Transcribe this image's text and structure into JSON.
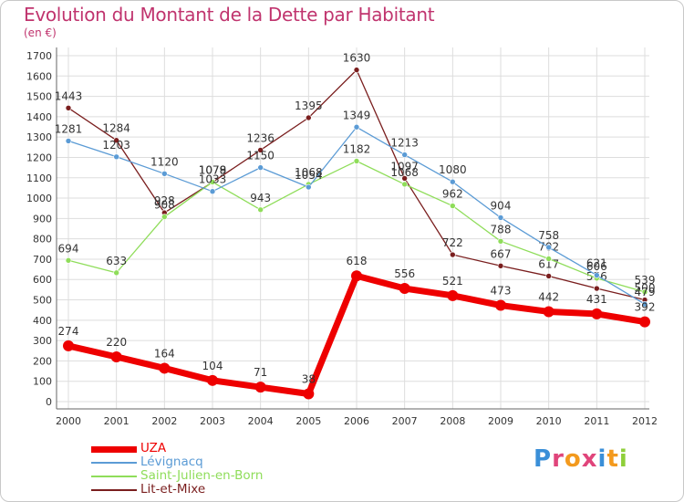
{
  "header": {
    "title": "Evolution du Montant de la Dette par Habitant",
    "unit": "(en €)"
  },
  "logo": {
    "text": "Proxiti"
  },
  "colors": {
    "title": "#c0346e",
    "grid": "#dddddd",
    "axis_text": "#333333"
  },
  "chart_data": {
    "type": "line",
    "title": "Evolution du Montant de la Dette par Habitant",
    "ylabel": "(en €)",
    "xlabel": "",
    "categories": [
      "2000",
      "2001",
      "2002",
      "2003",
      "2004",
      "2005",
      "2006",
      "2007",
      "2008",
      "2009",
      "2010",
      "2011",
      "2012"
    ],
    "ylim": [
      0,
      1700
    ],
    "yticks": [
      0,
      100,
      200,
      300,
      400,
      500,
      600,
      700,
      800,
      900,
      1000,
      1100,
      1200,
      1300,
      1400,
      1500,
      1600,
      1700
    ],
    "grid": true,
    "legend_position": "bottom-left",
    "series": [
      {
        "name": "UZA",
        "color": "#ee0000",
        "labels": [
          "274",
          "220",
          "164",
          "104",
          "71",
          "38",
          "618",
          "556",
          "521",
          "473",
          "442",
          "431",
          "392"
        ],
        "values": [
          274,
          220,
          164,
          104,
          71,
          38,
          618,
          556,
          521,
          473,
          442,
          431,
          392
        ]
      },
      {
        "name": "Lévignacq",
        "color": "#5b9bd5",
        "labels": [
          "1281",
          "1203",
          "1120",
          "1033",
          "1150",
          "1054",
          "1349",
          "1213",
          "1080",
          "904",
          "758",
          "621",
          "479"
        ],
        "values": [
          1281,
          1203,
          1120,
          1033,
          1150,
          1054,
          1349,
          1213,
          1080,
          904,
          758,
          621,
          479
        ]
      },
      {
        "name": "Saint-Julien-en-Born",
        "color": "#8fdd5a",
        "labels": [
          "694",
          "633",
          "908",
          "1079",
          "943",
          "1068",
          "1182",
          "1068",
          "962",
          "788",
          "702",
          "606",
          "539"
        ],
        "values": [
          694,
          633,
          908,
          1079,
          943,
          1068,
          1182,
          1068,
          962,
          788,
          702,
          606,
          539
        ]
      },
      {
        "name": "Lit-et-Mixe",
        "color": "#7a1e1e",
        "labels": [
          "1443",
          "1284",
          "928",
          "1078",
          "1236",
          "1395",
          "1630",
          "1097",
          "722",
          "667",
          "617",
          "556",
          "500"
        ],
        "values": [
          1443,
          1284,
          928,
          1078,
          1236,
          1395,
          1630,
          1097,
          722,
          667,
          617,
          556,
          500
        ]
      }
    ]
  }
}
